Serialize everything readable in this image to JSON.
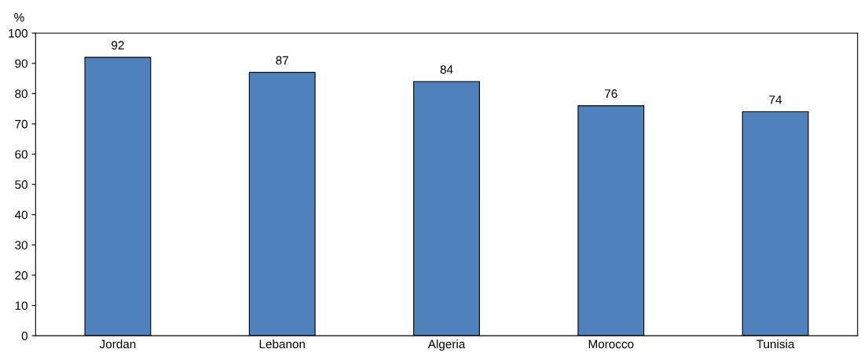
{
  "chart_data": {
    "type": "bar",
    "ylabel": "%",
    "categories": [
      "Jordan",
      "Lebanon",
      "Algeria",
      "Morocco",
      "Tunisia"
    ],
    "values": [
      92,
      87,
      84,
      76,
      74
    ],
    "color": "#4f81bd",
    "ylim": [
      0,
      100
    ],
    "yticks": [
      0,
      10,
      20,
      30,
      40,
      50,
      60,
      70,
      80,
      90,
      100
    ],
    "data_labels": true,
    "grid": false,
    "legend": false
  }
}
